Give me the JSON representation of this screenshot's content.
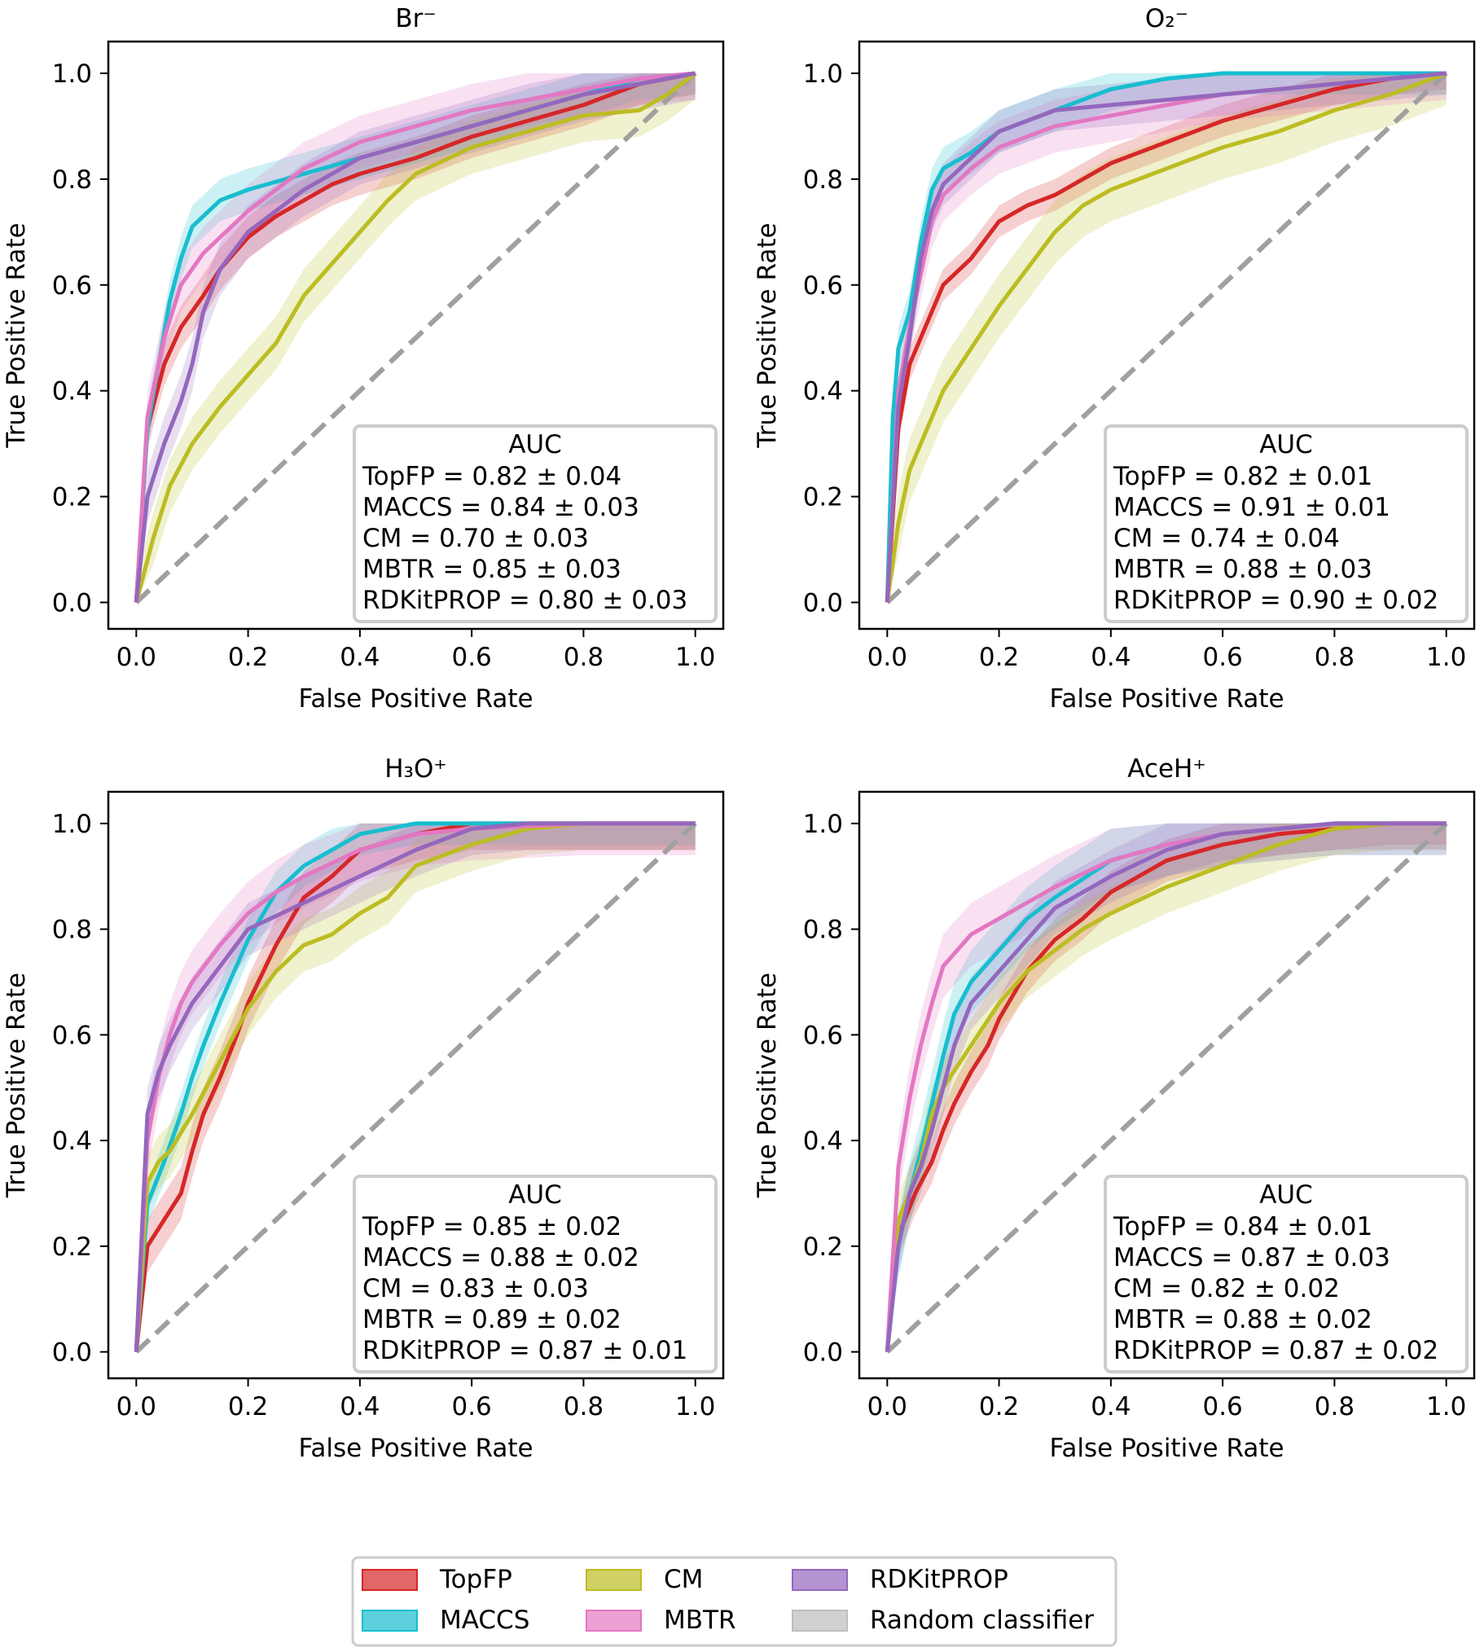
{
  "figure": {
    "legend_entries": [
      {
        "name": "TopFP",
        "color": "#d62728"
      },
      {
        "name": "MACCS",
        "color": "#17becf"
      },
      {
        "name": "CM",
        "color": "#bcbd22"
      },
      {
        "name": "MBTR",
        "color": "#e377c2"
      },
      {
        "name": "RDKitPROP",
        "color": "#9467bd"
      },
      {
        "name": "Random classifier",
        "color": "#9e9e9e"
      }
    ]
  },
  "chart_data": [
    {
      "type": "line",
      "title": "Br⁻",
      "xlabel": "False Positive Rate",
      "ylabel": "True Positive Rate",
      "xlim": [
        -0.05,
        1.05
      ],
      "ylim": [
        -0.05,
        1.06
      ],
      "xticks": [
        "0.0",
        "0.2",
        "0.4",
        "0.6",
        "0.8",
        "1.0"
      ],
      "yticks": [
        "0.0",
        "0.2",
        "0.4",
        "0.6",
        "0.8",
        "1.0"
      ],
      "grid": false,
      "auc_box": {
        "header": "AUC",
        "lines": [
          "TopFP = 0.82 ± 0.04",
          "MACCS = 0.84 ± 0.03",
          "CM = 0.70 ± 0.03",
          "MBTR = 0.85 ± 0.03",
          "RDKitPROP = 0.80 ± 0.03"
        ]
      },
      "series": [
        {
          "name": "TopFP",
          "color": "#d62728",
          "x": [
            0,
            0.02,
            0.05,
            0.08,
            0.12,
            0.15,
            0.2,
            0.25,
            0.3,
            0.35,
            0.4,
            0.5,
            0.6,
            0.7,
            0.8,
            0.9,
            1.0
          ],
          "y": [
            0,
            0.33,
            0.45,
            0.52,
            0.58,
            0.63,
            0.69,
            0.73,
            0.76,
            0.79,
            0.81,
            0.84,
            0.88,
            0.91,
            0.94,
            0.98,
            1.0
          ],
          "band": 0.04
        },
        {
          "name": "MACCS",
          "color": "#17becf",
          "x": [
            0,
            0.02,
            0.04,
            0.06,
            0.08,
            0.1,
            0.15,
            0.2,
            0.3,
            0.4,
            0.5,
            0.6,
            0.7,
            0.8,
            0.9,
            1.0
          ],
          "y": [
            0,
            0.33,
            0.45,
            0.57,
            0.65,
            0.71,
            0.76,
            0.78,
            0.81,
            0.84,
            0.87,
            0.9,
            0.93,
            0.96,
            0.99,
            1.0
          ],
          "band": 0.04
        },
        {
          "name": "CM",
          "color": "#bcbd22",
          "x": [
            0,
            0.03,
            0.06,
            0.1,
            0.15,
            0.2,
            0.25,
            0.3,
            0.35,
            0.4,
            0.45,
            0.5,
            0.6,
            0.7,
            0.8,
            0.9,
            0.95,
            1.0
          ],
          "y": [
            0,
            0.12,
            0.22,
            0.3,
            0.37,
            0.43,
            0.49,
            0.58,
            0.64,
            0.7,
            0.76,
            0.81,
            0.86,
            0.89,
            0.92,
            0.93,
            0.96,
            1.0
          ],
          "band": 0.05
        },
        {
          "name": "MBTR",
          "color": "#e377c2",
          "x": [
            0,
            0.02,
            0.05,
            0.08,
            0.12,
            0.16,
            0.2,
            0.3,
            0.4,
            0.5,
            0.6,
            0.7,
            0.8,
            0.9,
            1.0
          ],
          "y": [
            0,
            0.35,
            0.5,
            0.6,
            0.66,
            0.7,
            0.74,
            0.82,
            0.87,
            0.9,
            0.93,
            0.95,
            0.97,
            0.99,
            1.0
          ],
          "band": 0.05
        },
        {
          "name": "RDKitPROP",
          "color": "#9467bd",
          "x": [
            0,
            0.02,
            0.05,
            0.08,
            0.1,
            0.12,
            0.15,
            0.2,
            0.3,
            0.4,
            0.5,
            0.6,
            0.7,
            0.8,
            0.9,
            1.0
          ],
          "y": [
            0,
            0.2,
            0.3,
            0.38,
            0.45,
            0.55,
            0.63,
            0.7,
            0.78,
            0.84,
            0.87,
            0.9,
            0.93,
            0.96,
            0.98,
            1.0
          ],
          "band": 0.05
        },
        {
          "name": "Random classifier",
          "color": "#9e9e9e",
          "x": [
            0,
            1
          ],
          "y": [
            0,
            1
          ],
          "dashed": true
        }
      ]
    },
    {
      "type": "line",
      "title": "O₂⁻",
      "xlabel": "False Positive Rate",
      "ylabel": "True Positive Rate",
      "xlim": [
        -0.05,
        1.05
      ],
      "ylim": [
        -0.05,
        1.06
      ],
      "xticks": [
        "0.0",
        "0.2",
        "0.4",
        "0.6",
        "0.8",
        "1.0"
      ],
      "yticks": [
        "0.0",
        "0.2",
        "0.4",
        "0.6",
        "0.8",
        "1.0"
      ],
      "grid": false,
      "auc_box": {
        "header": "AUC",
        "lines": [
          "TopFP = 0.82 ± 0.01",
          "MACCS = 0.91 ± 0.01",
          "CM = 0.74 ± 0.04",
          "MBTR = 0.88 ± 0.03",
          "RDKitPROP = 0.90 ± 0.02"
        ]
      },
      "series": [
        {
          "name": "TopFP",
          "color": "#d62728",
          "x": [
            0,
            0.02,
            0.04,
            0.06,
            0.08,
            0.1,
            0.15,
            0.2,
            0.25,
            0.3,
            0.35,
            0.4,
            0.5,
            0.6,
            0.7,
            0.8,
            0.9,
            1.0
          ],
          "y": [
            0,
            0.33,
            0.45,
            0.5,
            0.55,
            0.6,
            0.65,
            0.72,
            0.75,
            0.77,
            0.8,
            0.83,
            0.87,
            0.91,
            0.94,
            0.97,
            0.99,
            1.0
          ],
          "band": 0.03
        },
        {
          "name": "MACCS",
          "color": "#17becf",
          "x": [
            0,
            0.01,
            0.02,
            0.04,
            0.06,
            0.08,
            0.1,
            0.15,
            0.2,
            0.3,
            0.4,
            0.5,
            0.6,
            0.8,
            1.0
          ],
          "y": [
            0,
            0.35,
            0.48,
            0.55,
            0.68,
            0.78,
            0.82,
            0.85,
            0.89,
            0.93,
            0.97,
            0.99,
            1.0,
            1.0,
            1.0
          ],
          "band": 0.04
        },
        {
          "name": "CM",
          "color": "#bcbd22",
          "x": [
            0,
            0.02,
            0.04,
            0.06,
            0.1,
            0.15,
            0.2,
            0.25,
            0.3,
            0.35,
            0.4,
            0.5,
            0.6,
            0.7,
            0.8,
            0.9,
            1.0
          ],
          "y": [
            0,
            0.15,
            0.25,
            0.3,
            0.4,
            0.48,
            0.56,
            0.63,
            0.7,
            0.75,
            0.78,
            0.82,
            0.86,
            0.89,
            0.93,
            0.96,
            1.0
          ],
          "band": 0.06
        },
        {
          "name": "MBTR",
          "color": "#e377c2",
          "x": [
            0,
            0.02,
            0.04,
            0.06,
            0.08,
            0.1,
            0.15,
            0.2,
            0.3,
            0.4,
            0.5,
            0.6,
            0.7,
            0.8,
            0.9,
            1.0
          ],
          "y": [
            0,
            0.4,
            0.52,
            0.62,
            0.72,
            0.77,
            0.82,
            0.86,
            0.9,
            0.92,
            0.94,
            0.96,
            0.97,
            0.98,
            0.99,
            1.0
          ],
          "band": 0.05
        },
        {
          "name": "RDKitPROP",
          "color": "#9467bd",
          "x": [
            0,
            0.02,
            0.04,
            0.06,
            0.08,
            0.1,
            0.15,
            0.2,
            0.3,
            0.4,
            0.5,
            0.6,
            0.7,
            0.8,
            0.9,
            1.0
          ],
          "y": [
            0,
            0.37,
            0.5,
            0.65,
            0.74,
            0.79,
            0.84,
            0.89,
            0.93,
            0.94,
            0.95,
            0.96,
            0.97,
            0.98,
            0.99,
            1.0
          ],
          "band": 0.04
        },
        {
          "name": "Random classifier",
          "color": "#9e9e9e",
          "x": [
            0,
            1
          ],
          "y": [
            0,
            1
          ],
          "dashed": true
        }
      ]
    },
    {
      "type": "line",
      "title": "H₃O⁺",
      "xlabel": "False Positive Rate",
      "ylabel": "True Positive Rate",
      "xlim": [
        -0.05,
        1.05
      ],
      "ylim": [
        -0.05,
        1.06
      ],
      "xticks": [
        "0.0",
        "0.2",
        "0.4",
        "0.6",
        "0.8",
        "1.0"
      ],
      "yticks": [
        "0.0",
        "0.2",
        "0.4",
        "0.6",
        "0.8",
        "1.0"
      ],
      "grid": false,
      "auc_box": {
        "header": "AUC",
        "lines": [
          "TopFP = 0.85 ± 0.02",
          "MACCS = 0.88 ± 0.02",
          "CM = 0.83 ± 0.03",
          "MBTR = 0.89 ± 0.02",
          "RDKitPROP = 0.87 ± 0.01"
        ]
      },
      "series": [
        {
          "name": "TopFP",
          "color": "#d62728",
          "x": [
            0,
            0.02,
            0.05,
            0.08,
            0.1,
            0.12,
            0.15,
            0.18,
            0.2,
            0.25,
            0.3,
            0.35,
            0.4,
            0.5,
            0.6,
            0.8,
            1.0
          ],
          "y": [
            0,
            0.2,
            0.25,
            0.3,
            0.38,
            0.45,
            0.52,
            0.6,
            0.66,
            0.77,
            0.86,
            0.9,
            0.95,
            0.98,
            1.0,
            1.0,
            1.0
          ],
          "band": 0.05
        },
        {
          "name": "MACCS",
          "color": "#17becf",
          "x": [
            0,
            0.02,
            0.05,
            0.08,
            0.1,
            0.12,
            0.15,
            0.2,
            0.25,
            0.3,
            0.35,
            0.4,
            0.5,
            0.6,
            0.8,
            1.0
          ],
          "y": [
            0,
            0.28,
            0.36,
            0.45,
            0.52,
            0.58,
            0.66,
            0.78,
            0.87,
            0.92,
            0.95,
            0.98,
            1.0,
            1.0,
            1.0,
            1.0
          ],
          "band": 0.04
        },
        {
          "name": "CM",
          "color": "#bcbd22",
          "x": [
            0,
            0.02,
            0.04,
            0.06,
            0.1,
            0.15,
            0.2,
            0.25,
            0.3,
            0.35,
            0.4,
            0.45,
            0.5,
            0.6,
            0.7,
            0.8,
            1.0
          ],
          "y": [
            0,
            0.32,
            0.36,
            0.38,
            0.45,
            0.55,
            0.65,
            0.72,
            0.77,
            0.79,
            0.83,
            0.86,
            0.92,
            0.96,
            0.99,
            1.0,
            1.0
          ],
          "band": 0.05
        },
        {
          "name": "MBTR",
          "color": "#e377c2",
          "x": [
            0,
            0.02,
            0.04,
            0.06,
            0.08,
            0.1,
            0.15,
            0.2,
            0.25,
            0.3,
            0.4,
            0.5,
            0.6,
            0.8,
            1.0
          ],
          "y": [
            0,
            0.4,
            0.52,
            0.6,
            0.66,
            0.7,
            0.77,
            0.83,
            0.87,
            0.9,
            0.95,
            0.98,
            0.99,
            1.0,
            1.0
          ],
          "band": 0.06
        },
        {
          "name": "RDKitPROP",
          "color": "#9467bd",
          "x": [
            0,
            0.02,
            0.04,
            0.06,
            0.08,
            0.1,
            0.15,
            0.2,
            0.3,
            0.4,
            0.5,
            0.6,
            0.7,
            0.8,
            1.0
          ],
          "y": [
            0,
            0.45,
            0.53,
            0.58,
            0.62,
            0.66,
            0.73,
            0.8,
            0.85,
            0.9,
            0.95,
            0.99,
            1.0,
            1.0,
            1.0
          ],
          "band": 0.05
        },
        {
          "name": "Random classifier",
          "color": "#9e9e9e",
          "x": [
            0,
            1
          ],
          "y": [
            0,
            1
          ],
          "dashed": true
        }
      ]
    },
    {
      "type": "line",
      "title": "AceH⁺",
      "xlabel": "False Positive Rate",
      "ylabel": "True Positive Rate",
      "xlim": [
        -0.05,
        1.05
      ],
      "ylim": [
        -0.05,
        1.06
      ],
      "xticks": [
        "0.0",
        "0.2",
        "0.4",
        "0.6",
        "0.8",
        "1.0"
      ],
      "yticks": [
        "0.0",
        "0.2",
        "0.4",
        "0.6",
        "0.8",
        "1.0"
      ],
      "grid": false,
      "auc_box": {
        "header": "AUC",
        "lines": [
          "TopFP = 0.84 ± 0.01",
          "MACCS = 0.87 ± 0.03",
          "CM = 0.82 ± 0.02",
          "MBTR = 0.88 ± 0.02",
          "RDKitPROP = 0.87 ± 0.02"
        ]
      },
      "series": [
        {
          "name": "TopFP",
          "color": "#d62728",
          "x": [
            0,
            0.02,
            0.05,
            0.08,
            0.1,
            0.12,
            0.15,
            0.18,
            0.2,
            0.25,
            0.3,
            0.35,
            0.4,
            0.5,
            0.6,
            0.7,
            0.8,
            0.9,
            1.0
          ],
          "y": [
            0,
            0.22,
            0.3,
            0.36,
            0.42,
            0.47,
            0.53,
            0.58,
            0.63,
            0.72,
            0.78,
            0.82,
            0.87,
            0.93,
            0.96,
            0.98,
            0.99,
            1.0,
            1.0
          ],
          "band": 0.04
        },
        {
          "name": "MACCS",
          "color": "#17becf",
          "x": [
            0,
            0.02,
            0.04,
            0.06,
            0.08,
            0.1,
            0.12,
            0.15,
            0.2,
            0.25,
            0.3,
            0.4,
            0.5,
            0.6,
            0.7,
            0.8,
            0.9,
            1.0
          ],
          "y": [
            0,
            0.2,
            0.3,
            0.38,
            0.47,
            0.56,
            0.64,
            0.7,
            0.76,
            0.82,
            0.86,
            0.93,
            0.96,
            0.98,
            0.99,
            1.0,
            1.0,
            1.0
          ],
          "band": 0.06
        },
        {
          "name": "CM",
          "color": "#bcbd22",
          "x": [
            0,
            0.02,
            0.04,
            0.06,
            0.08,
            0.1,
            0.15,
            0.2,
            0.25,
            0.3,
            0.35,
            0.4,
            0.5,
            0.6,
            0.7,
            0.8,
            0.9,
            1.0
          ],
          "y": [
            0,
            0.25,
            0.3,
            0.36,
            0.45,
            0.5,
            0.58,
            0.66,
            0.72,
            0.76,
            0.8,
            0.83,
            0.88,
            0.92,
            0.96,
            0.99,
            1.0,
            1.0
          ],
          "band": 0.05
        },
        {
          "name": "MBTR",
          "color": "#e377c2",
          "x": [
            0,
            0.02,
            0.04,
            0.06,
            0.08,
            0.1,
            0.15,
            0.2,
            0.3,
            0.4,
            0.5,
            0.6,
            0.7,
            0.8,
            0.9,
            1.0
          ],
          "y": [
            0,
            0.35,
            0.48,
            0.58,
            0.66,
            0.73,
            0.79,
            0.82,
            0.88,
            0.93,
            0.96,
            0.98,
            0.99,
            1.0,
            1.0,
            1.0
          ],
          "band": 0.06
        },
        {
          "name": "RDKitPROP",
          "color": "#9467bd",
          "x": [
            0,
            0.02,
            0.04,
            0.06,
            0.08,
            0.1,
            0.12,
            0.15,
            0.2,
            0.25,
            0.3,
            0.4,
            0.5,
            0.6,
            0.7,
            0.8,
            0.9,
            1.0
          ],
          "y": [
            0,
            0.2,
            0.3,
            0.35,
            0.42,
            0.5,
            0.58,
            0.66,
            0.72,
            0.78,
            0.84,
            0.9,
            0.95,
            0.98,
            0.99,
            1.0,
            1.0,
            1.0
          ],
          "band": 0.05
        },
        {
          "name": "Random classifier",
          "color": "#9e9e9e",
          "x": [
            0,
            1
          ],
          "y": [
            0,
            1
          ],
          "dashed": true
        }
      ]
    }
  ]
}
